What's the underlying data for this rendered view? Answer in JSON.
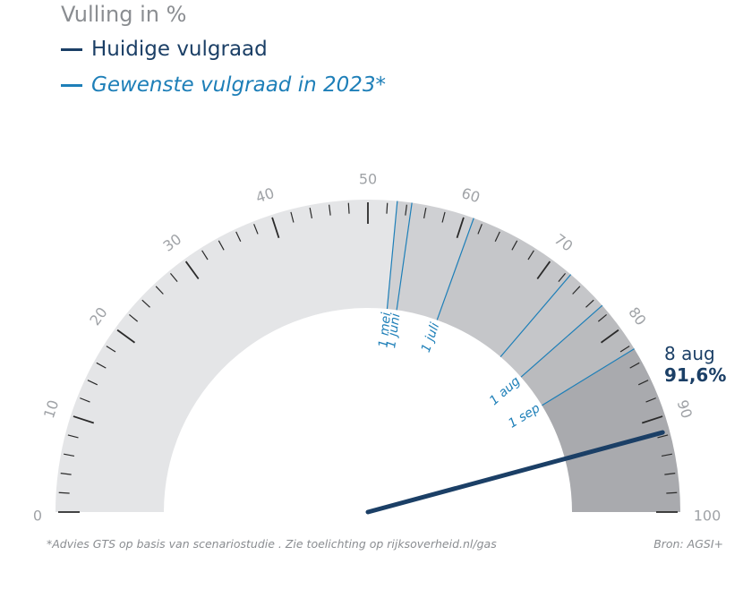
{
  "chart_data": {
    "type": "gauge",
    "title": "Vulling in %",
    "series": [
      {
        "name": "Huidige vulgraad",
        "color": "#1b3f66",
        "value": 91.6
      },
      {
        "name": "Gewenste vulgraad in 2023*",
        "color": "#1e7fb8"
      }
    ],
    "range": [
      0,
      100
    ],
    "tick_labels": [
      "0",
      "10",
      "20",
      "30",
      "40",
      "50",
      "60",
      "70",
      "80",
      "90",
      "100"
    ],
    "targets": [
      {
        "label": "1 mei",
        "value": 53
      },
      {
        "label": "1 juni",
        "value": 54.5
      },
      {
        "label": "1 juli",
        "value": 61
      },
      {
        "label": "1 aug",
        "value": 77
      },
      {
        "label": "1 sep",
        "value": 82.5
      }
    ],
    "target_extra": [
      {
        "value": 72.5
      }
    ],
    "current": {
      "date": "8 aug",
      "value_label": "91,6%",
      "value": 91.6
    },
    "bands": [
      {
        "from": 0,
        "to": 53,
        "color": "#e4e5e7"
      },
      {
        "from": 53,
        "to": 61,
        "color": "#cfd0d3"
      },
      {
        "from": 61,
        "to": 77,
        "color": "#c5c6c9"
      },
      {
        "from": 77,
        "to": 82.5,
        "color": "#babbbe"
      },
      {
        "from": 82.5,
        "to": 100,
        "color": "#a9aaae"
      }
    ]
  },
  "footnote": "*Advies GTS op basis van scenariostudie . Zie toelichting op rijksoverheid.nl/gas",
  "source": "Bron: AGSI+"
}
